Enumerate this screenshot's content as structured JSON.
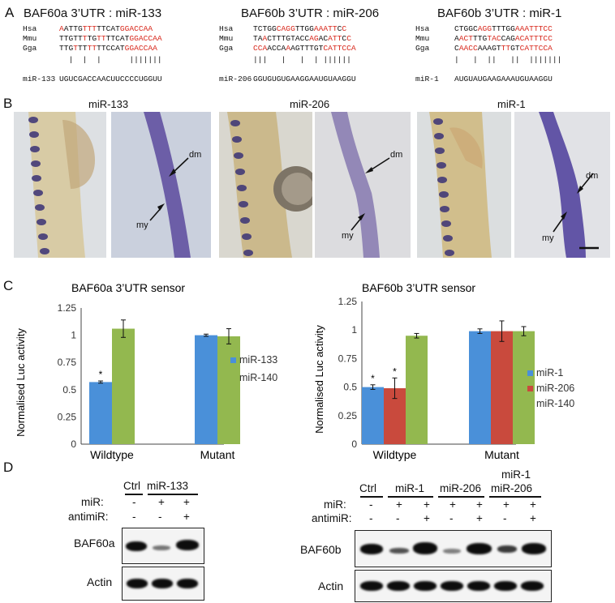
{
  "panels": {
    "A": "A",
    "B": "B",
    "C": "C",
    "D": "D"
  },
  "panelA": {
    "titles": [
      "BAF60a 3’UTR : miR-133",
      "BAF60b 3’UTR : miR-206",
      "BAF60b 3’UTR : miR-1"
    ],
    "species": [
      "Hsa",
      "Mmu",
      "Gga"
    ],
    "blocks": [
      {
        "rows": [
          [
            {
              "t": "A",
              "r": true
            },
            {
              "t": "ATTG",
              "r": false
            },
            {
              "t": "TTT",
              "r": true
            },
            {
              "t": "TTCAT",
              "r": false
            },
            {
              "t": "GGACCAA",
              "r": true
            }
          ],
          [
            {
              "t": "TTGTT",
              "r": false
            },
            {
              "t": "T",
              "r": true
            },
            {
              "t": "TG",
              "r": false
            },
            {
              "t": "TT",
              "r": true
            },
            {
              "t": "TTCAT",
              "r": false
            },
            {
              "t": "GGACCAA",
              "r": true
            }
          ],
          [
            {
              "t": "TTG",
              "r": false
            },
            {
              "t": "T",
              "r": true
            },
            {
              "t": "TT",
              "r": false
            },
            {
              "t": "TT",
              "r": true
            },
            {
              "t": "TTCCAT",
              "r": false
            },
            {
              "t": "GGACCAA",
              "r": true
            }
          ]
        ],
        "bars": "  |  |  |      |||||||",
        "mirna_label": "miR-133",
        "mirna_seq": "UGUCGACCAACUUCCCCUGGUU"
      },
      {
        "rows": [
          [
            {
              "t": "TCTGG",
              "r": false
            },
            {
              "t": "CAGG",
              "r": true
            },
            {
              "t": "TTGG",
              "r": false
            },
            {
              "t": "AAATT",
              "r": true
            },
            {
              "t": "C",
              "r": false
            },
            {
              "t": "C",
              "r": true
            }
          ],
          [
            {
              "t": "TA",
              "r": false
            },
            {
              "t": "A",
              "r": true
            },
            {
              "t": "CTTTGTACC",
              "r": false
            },
            {
              "t": "AG",
              "r": true
            },
            {
              "t": "AC",
              "r": false
            },
            {
              "t": "ATT",
              "r": true
            },
            {
              "t": "C",
              "r": false
            },
            {
              "t": "C",
              "r": true
            }
          ],
          [
            {
              "t": "CCA",
              "r": true
            },
            {
              "t": "ACCA",
              "r": false
            },
            {
              "t": "A",
              "r": true
            },
            {
              "t": "AGTTTGT",
              "r": false
            },
            {
              "t": "CATTCCA",
              "r": true
            }
          ]
        ],
        "bars": "|||   |   |  | ||||||",
        "mirna_label": "miR-206",
        "mirna_seq": "GGUGUGUGAAGGAAUGUAAGGU"
      },
      {
        "rows": [
          [
            {
              "t": "CTGGC",
              "r": false
            },
            {
              "t": "AGG",
              "r": true
            },
            {
              "t": "TTTGG",
              "r": false
            },
            {
              "t": "AAATTTCC",
              "r": true
            }
          ],
          [
            {
              "t": "A",
              "r": false
            },
            {
              "t": "ACT",
              "r": true
            },
            {
              "t": "TTG",
              "r": false
            },
            {
              "t": "TAC",
              "r": true
            },
            {
              "t": "CAG",
              "r": false
            },
            {
              "t": "ACATTTCC",
              "r": true
            }
          ],
          [
            {
              "t": "C",
              "r": false
            },
            {
              "t": "AACC",
              "r": true
            },
            {
              "t": "AAAGT",
              "r": false
            },
            {
              "t": "TT",
              "r": true
            },
            {
              "t": "GT",
              "r": false
            },
            {
              "t": "CATTCCA",
              "r": true
            }
          ]
        ],
        "bars": "|   |  ||   ||  |||||||",
        "mirna_label": "miR-1",
        "mirna_seq": "AUGUAUGAAGAAAUGUAAGGU"
      }
    ]
  },
  "panelB": {
    "titles": [
      "miR-133",
      "miR-206",
      "miR-1"
    ],
    "arrow_labels": {
      "dm": "dm",
      "my": "my"
    }
  },
  "panelC": {
    "ylabel": "Normalised Luc activity",
    "yticks": [
      "1.25",
      "1",
      "0.75",
      "0.5",
      "0.25",
      "0"
    ],
    "significance": "*",
    "charts_titles": [
      "BAF60a 3’UTR sensor",
      "BAF60b 3’UTR sensor"
    ]
  },
  "chart_data": [
    {
      "type": "bar",
      "title": "BAF60a 3’UTR sensor",
      "ylabel": "Normalised Luc activity",
      "ylim": [
        0,
        1.25
      ],
      "yticks": [
        0,
        0.25,
        0.5,
        0.75,
        1,
        1.25
      ],
      "categories": [
        "Wildtype",
        "Mutant"
      ],
      "series": [
        {
          "name": "miR-133",
          "color": "#4a90d9",
          "values": [
            0.57,
            1.0
          ],
          "errors": [
            0.01,
            0.01
          ]
        },
        {
          "name": "miR-140",
          "color": "#93b84f",
          "values": [
            1.06,
            0.99
          ],
          "errors": [
            0.08,
            0.07
          ]
        }
      ],
      "legend": "right"
    },
    {
      "type": "bar",
      "title": "BAF60b 3’UTR sensor",
      "ylabel": "Normalised Luc activity",
      "ylim": [
        0,
        1.25
      ],
      "yticks": [
        0,
        0.25,
        0.5,
        0.75,
        1,
        1.25
      ],
      "categories": [
        "Wildtype",
        "Mutant"
      ],
      "series": [
        {
          "name": "miR-1",
          "color": "#4a90d9",
          "values": [
            0.5,
            0.99
          ],
          "errors": [
            0.02,
            0.02
          ]
        },
        {
          "name": "miR-206",
          "color": "#c94a3d",
          "values": [
            0.49,
            0.99
          ],
          "errors": [
            0.09,
            0.09
          ]
        },
        {
          "name": "miR-140",
          "color": "#93b84f",
          "values": [
            0.95,
            0.99
          ],
          "errors": [
            0.02,
            0.04
          ]
        }
      ],
      "legend": "right"
    }
  ],
  "panelD": {
    "left": {
      "ctrl": "Ctrl",
      "group": "miR-133",
      "row1_label": "miR:",
      "row2_label": "antimiR:",
      "row1": [
        "-",
        "+",
        "+"
      ],
      "row2": [
        "-",
        "-",
        "+"
      ],
      "blot1": "BAF60a",
      "blot2": "Actin"
    },
    "right": {
      "ctrl": "Ctrl",
      "groups": [
        "miR-1",
        "miR-206",
        "miR-1\nmiR-206"
      ],
      "group_line1": "miR-1",
      "group_line2": "miR-206",
      "row1_label": "miR:",
      "row2_label": "antimiR:",
      "row1": [
        "-",
        "+",
        "+",
        "+",
        "+",
        "+",
        "+"
      ],
      "row2": [
        "-",
        "-",
        "+",
        "-",
        "+",
        "-",
        "+"
      ],
      "blot1": "BAF60b",
      "blot2": "Actin"
    }
  }
}
